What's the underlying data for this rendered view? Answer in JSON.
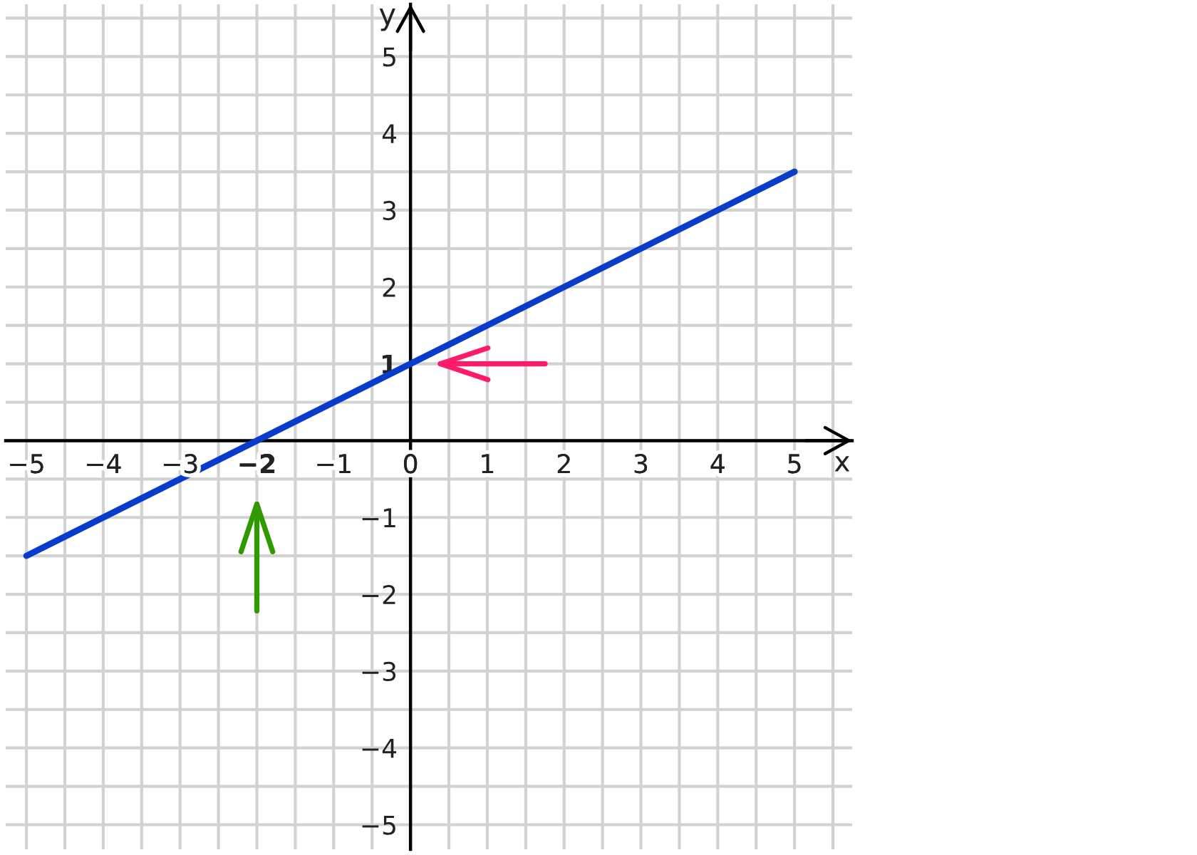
{
  "chart_data": {
    "type": "line",
    "xlabel": "x",
    "ylabel": "y",
    "x": [
      -5,
      5
    ],
    "series": [
      {
        "color": "#0a3ccc",
        "values": [
          -1.5,
          3.5
        ]
      }
    ],
    "xlim": [
      -5.27,
      5.75
    ],
    "ylim": [
      -5.32,
      5.68
    ],
    "xticks": [
      {
        "value": -5,
        "label": "−5"
      },
      {
        "value": -4,
        "label": "−4"
      },
      {
        "value": -3,
        "label": "−3"
      },
      {
        "value": -2,
        "label": "−2"
      },
      {
        "value": -1,
        "label": "−1"
      },
      0,
      1,
      2,
      3,
      4,
      5
    ],
    "yticks": [
      {
        "value": -5,
        "label": "−5"
      },
      {
        "value": -4,
        "label": "−4"
      },
      {
        "value": -3,
        "label": "−3"
      },
      {
        "value": -2,
        "label": "−2"
      },
      {
        "value": -1,
        "label": "−1"
      },
      1,
      2,
      3,
      4,
      5
    ],
    "grid": true
  }
}
